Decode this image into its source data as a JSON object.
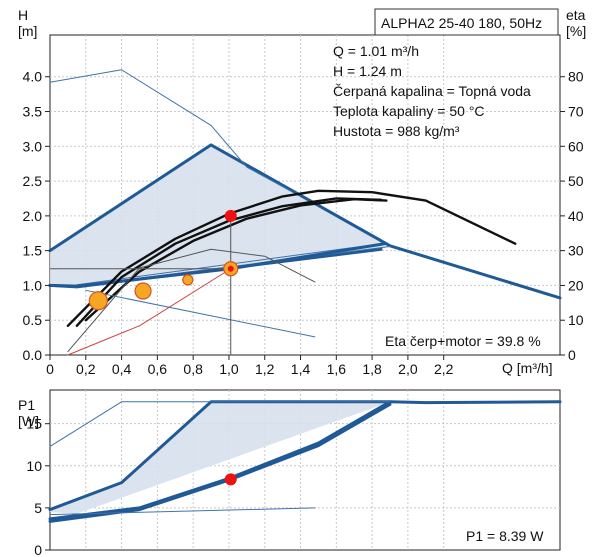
{
  "chart_data": [
    {
      "type": "line",
      "name_box": "ALPHA2 25-40 180, 50Hz",
      "xlabel": "Q [m³/h]",
      "ylabel_left": [
        "H",
        "[m]"
      ],
      "ylabel_right": [
        "eta",
        "[%]"
      ],
      "xlim": [
        0,
        2.85
      ],
      "ylim": [
        0,
        4.6
      ],
      "y2lim": [
        0,
        92
      ],
      "x_ticks": [
        "0",
        "0,2",
        "0,4",
        "0,6",
        "0,8",
        "1,0",
        "1,2",
        "1,4",
        "1,6",
        "1,8",
        "2,0",
        "2,2"
      ],
      "x_tick_values": [
        0,
        0.2,
        0.4,
        0.6,
        0.8,
        1.0,
        1.2,
        1.4,
        1.6,
        1.8,
        2.0,
        2.2
      ],
      "y_ticks": [
        "0.0",
        "0.5",
        "1.0",
        "1.5",
        "2.0",
        "2.5",
        "3.0",
        "3.5",
        "4.0"
      ],
      "y_tick_values": [
        0,
        0.5,
        1.0,
        1.5,
        2.0,
        2.5,
        3.0,
        3.5,
        4.0
      ],
      "y2_ticks": [
        "0",
        "10",
        "20",
        "30",
        "40",
        "50",
        "60",
        "70",
        "80"
      ],
      "y2_tick_values": [
        0,
        10,
        20,
        30,
        40,
        50,
        60,
        70,
        80
      ],
      "grid": true,
      "info": [
        "Q = 1.01 m³/h",
        "H = 1.24 m",
        "Čerpaná kapalina = Topná voda",
        "Teplota kapaliny = 50 °C",
        "Hustota = 988 kg/m³"
      ],
      "annotation": "Eta čerp+motor = 39.8 %",
      "region": {
        "x": [
          0,
          0.9,
          1.9,
          1.85,
          0.15,
          0
        ],
        "y": [
          1.5,
          3.02,
          1.57,
          1.52,
          0.98,
          1.0
        ]
      },
      "series": [
        {
          "role": "max-curve",
          "color": "#1f5a96",
          "x": [
            0,
            0.9,
            1.9,
            2.85
          ],
          "y": [
            1.5,
            3.02,
            1.57,
            0.82
          ]
        },
        {
          "role": "min-curve",
          "color": "#1f5a96",
          "x": [
            0,
            0.15,
            1.85
          ],
          "y": [
            1.0,
            0.98,
            1.52
          ]
        },
        {
          "role": "blue-thin-a",
          "color": "#3f74a8",
          "x": [
            0.15,
            1.85
          ],
          "y": [
            1.01,
            1.6
          ]
        },
        {
          "role": "blue-thin-b",
          "color": "#3f74a8",
          "x": [
            0.15,
            1.9
          ],
          "y": [
            0.99,
            1.56
          ]
        },
        {
          "role": "setpoint-curve",
          "color": "#1f5a96",
          "x": [
            0,
            0.15,
            1.01,
            1.87
          ],
          "y": [
            1.0,
            0.99,
            1.24,
            1.6
          ]
        },
        {
          "role": "eta-black-1",
          "color": "#111111",
          "x": [
            0.1,
            0.4,
            0.7,
            1.0,
            1.3,
            1.5,
            1.8,
            2.1,
            2.6
          ],
          "y": [
            0.42,
            1.2,
            1.67,
            2.03,
            2.28,
            2.36,
            2.34,
            2.22,
            1.6
          ]
        },
        {
          "role": "eta-black-2",
          "color": "#111111",
          "x": [
            0.15,
            0.4,
            0.7,
            1.0,
            1.3,
            1.6,
            1.85
          ],
          "y": [
            0.42,
            1.12,
            1.6,
            1.93,
            2.14,
            2.25,
            2.23
          ]
        },
        {
          "role": "eta-black-3",
          "color": "#111111",
          "x": [
            0.2,
            0.5,
            0.8,
            1.1,
            1.4,
            1.7,
            1.88
          ],
          "y": [
            0.5,
            1.2,
            1.64,
            1.96,
            2.15,
            2.24,
            2.22
          ]
        },
        {
          "role": "eta-thin",
          "color": "#555555",
          "x": [
            0.1,
            0.5,
            0.9,
            1.2,
            1.48
          ],
          "y": [
            0.05,
            1.25,
            1.52,
            1.42,
            1.05
          ]
        },
        {
          "role": "power-top-thin",
          "color": "#3f74a8",
          "x": [
            0,
            0.4,
            0.9,
            1.1,
            1.35
          ],
          "y": [
            3.92,
            4.1,
            3.3,
            2.7,
            2.35
          ]
        },
        {
          "role": "red-thin",
          "color": "#cc4444",
          "x": [
            0.1,
            0.5,
            1.01
          ],
          "y": [
            0.0,
            0.42,
            1.24
          ]
        },
        {
          "role": "slope-thin",
          "color": "#3f74a8",
          "x": [
            0.2,
            1.48
          ],
          "y": [
            0.93,
            0.26
          ]
        },
        {
          "role": "horizontal-guide",
          "color": "#555555",
          "x": [
            0,
            1.01
          ],
          "y": [
            1.24,
            1.24
          ]
        },
        {
          "role": "vertical-guide",
          "color": "#555555",
          "x": [
            1.01,
            1.01
          ],
          "y": [
            0,
            2.0
          ]
        }
      ],
      "points": [
        {
          "role": "duty-red",
          "color": "#ee1111",
          "x": 1.01,
          "y": 2.0
        },
        {
          "role": "duty-setpoint",
          "color": "#f5a623",
          "x": 1.01,
          "y": 1.24
        },
        {
          "role": "orange-a",
          "color": "#f5a623",
          "x": 0.27,
          "y": 0.78
        },
        {
          "role": "orange-b",
          "color": "#f5a623",
          "x": 0.52,
          "y": 0.92
        },
        {
          "role": "orange-c",
          "color": "#f5a623",
          "x": 0.77,
          "y": 1.08
        }
      ]
    },
    {
      "type": "line",
      "ylabel_left": [
        "P1",
        "[W]"
      ],
      "xlim": [
        0,
        2.85
      ],
      "ylim": [
        0,
        19
      ],
      "y_ticks": [
        "0",
        "5",
        "10",
        "15"
      ],
      "y_tick_values": [
        0,
        5,
        10,
        15
      ],
      "grid": true,
      "annotation": "P1 = 8.39 W",
      "region": {
        "x": [
          0,
          0.4,
          0.9,
          1.9,
          1.85,
          0.15,
          0
        ],
        "y": [
          4.8,
          8.0,
          17.6,
          17.6,
          17.2,
          4.3,
          4.5
        ]
      },
      "series": [
        {
          "role": "max-power",
          "color": "#1f5a96",
          "x": [
            0,
            0.4,
            0.9,
            1.9,
            2.1,
            2.85
          ],
          "y": [
            4.8,
            8.0,
            17.6,
            17.6,
            17.5,
            17.6
          ]
        },
        {
          "role": "min-power",
          "color": "#1f5a96",
          "x": [
            0,
            0.5,
            1.0,
            1.5,
            1.9
          ],
          "y": [
            3.4,
            4.8,
            8.3,
            12.4,
            17.3
          ]
        },
        {
          "role": "min-power-2",
          "color": "#1f5a96",
          "x": [
            0,
            0.5,
            1.0,
            1.5,
            1.9
          ],
          "y": [
            3.7,
            5.0,
            8.5,
            12.7,
            17.6
          ]
        },
        {
          "role": "top-thin",
          "color": "#3f74a8",
          "x": [
            0,
            0.4,
            1.9
          ],
          "y": [
            12.3,
            17.6,
            17.6
          ]
        },
        {
          "role": "bottom-thin",
          "color": "#3f74a8",
          "x": [
            0,
            1.48
          ],
          "y": [
            4.2,
            5.0
          ]
        }
      ],
      "points": [
        {
          "role": "power-red",
          "color": "#ee1111",
          "x": 1.01,
          "y": 8.39
        }
      ]
    }
  ]
}
